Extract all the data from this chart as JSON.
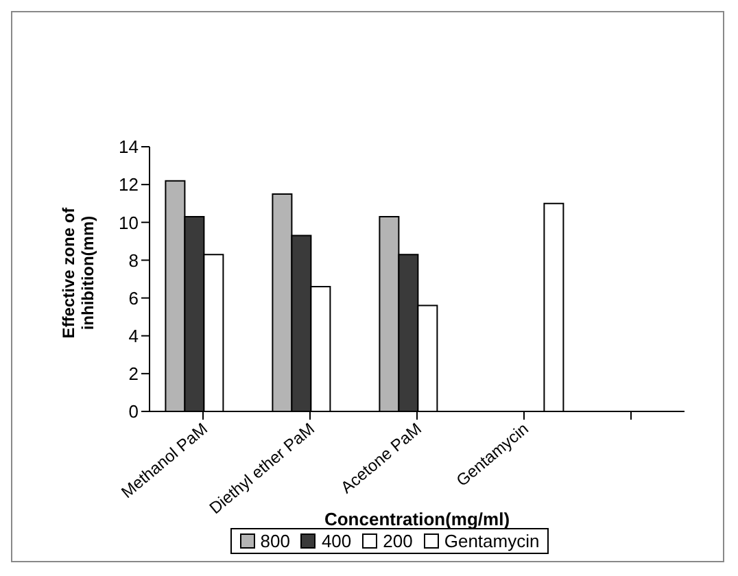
{
  "chart_data": {
    "type": "bar",
    "xlabel": "Concentration(mg/ml)",
    "ylabel": "Effective zone of inhibition(mm)",
    "categories": [
      "Methanol PaM",
      "Diethyl ether PaM",
      "Acetone PaM",
      "Gentamycin",
      null
    ],
    "series": [
      {
        "name": "800",
        "color": "#b4b4b4",
        "values": [
          12.2,
          11.5,
          10.3,
          null,
          null
        ]
      },
      {
        "name": "400",
        "color": "#3a3a3a",
        "values": [
          10.3,
          9.3,
          8.3,
          null,
          null
        ]
      },
      {
        "name": "200",
        "color": "#ffffff",
        "values": [
          8.3,
          6.6,
          5.6,
          null,
          null
        ]
      },
      {
        "name": "Gentamycin",
        "color": "#ffffff",
        "values": [
          null,
          null,
          null,
          11.0,
          null
        ]
      }
    ],
    "ylim": [
      0,
      14
    ],
    "yticks": [
      0,
      2,
      4,
      6,
      8,
      10,
      12,
      14
    ],
    "grid": false,
    "legend": "bottom"
  }
}
